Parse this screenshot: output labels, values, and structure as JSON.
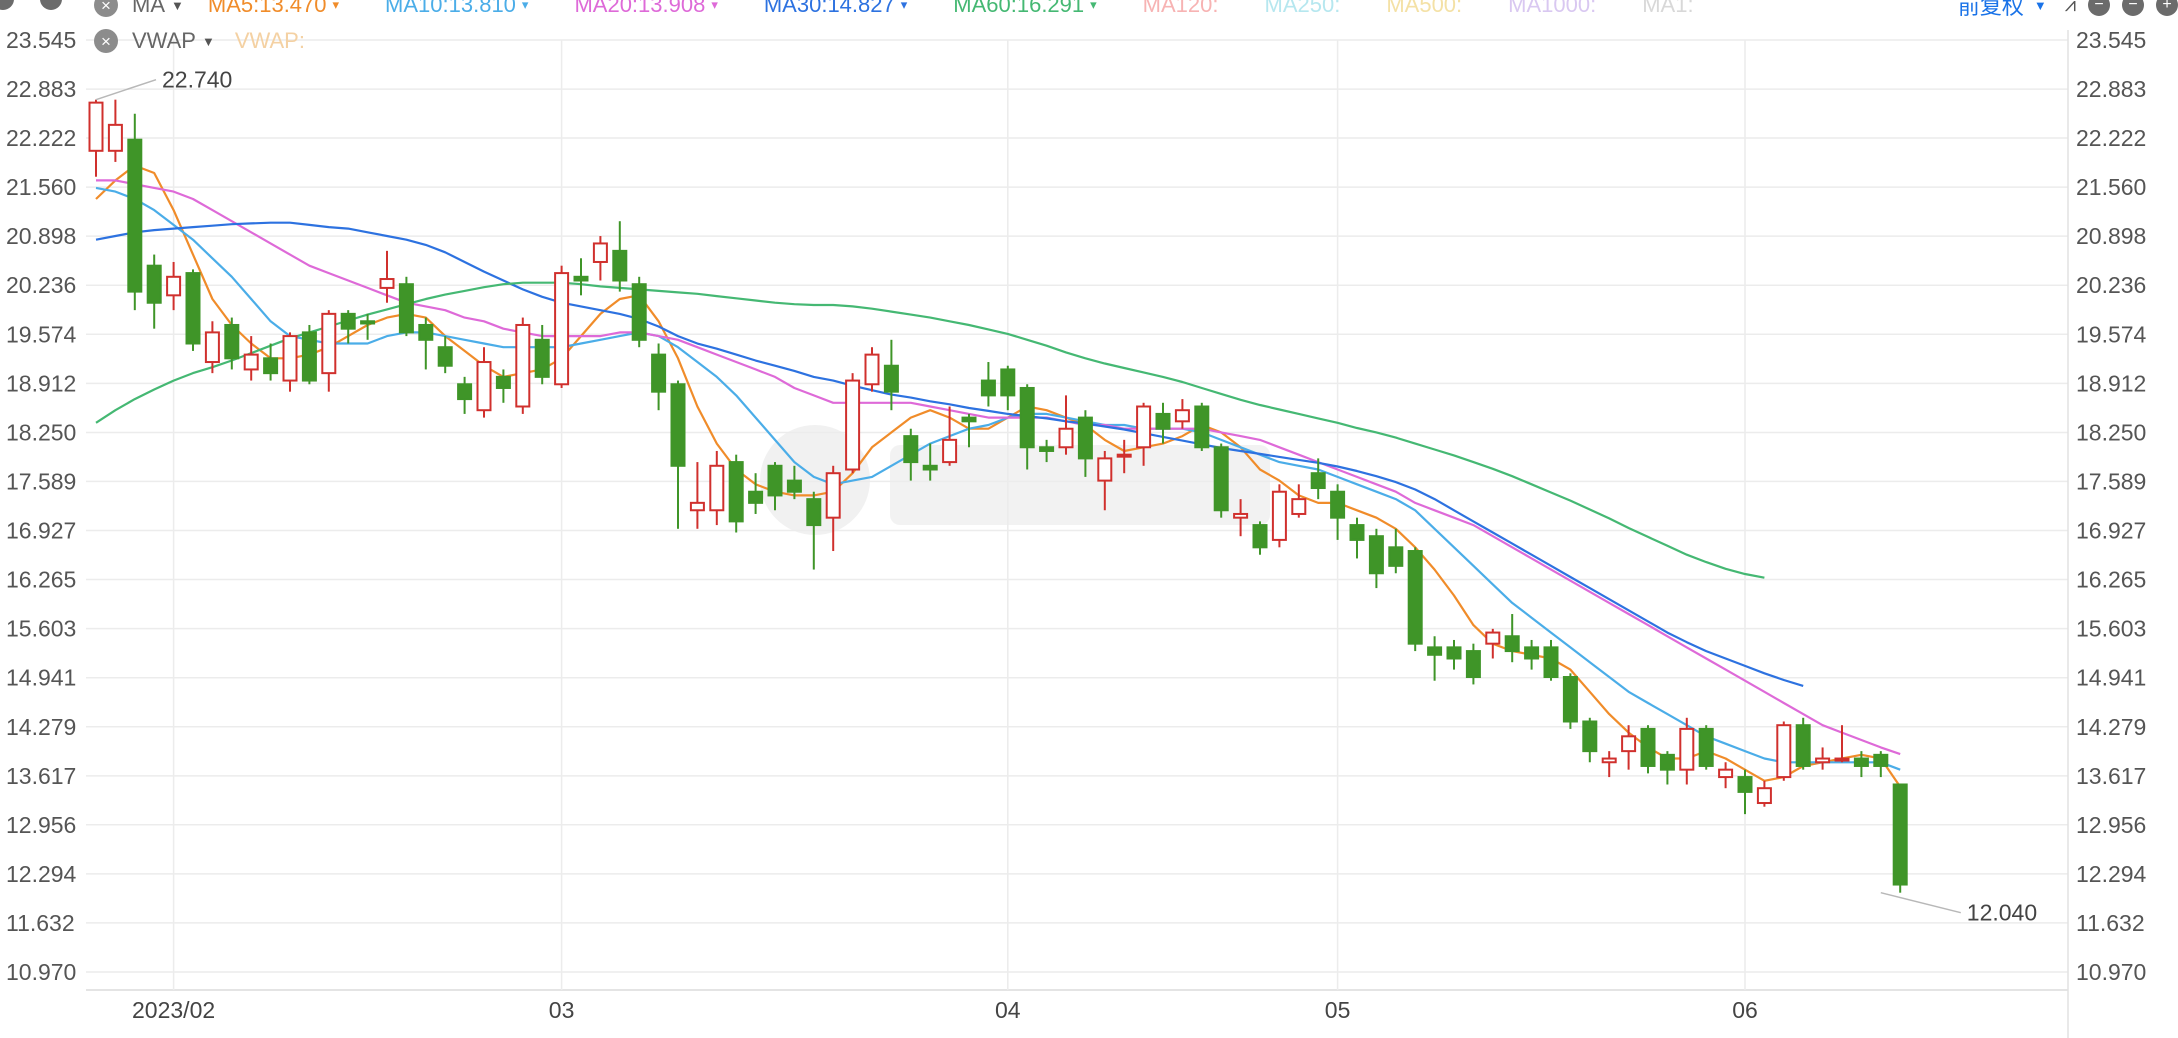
{
  "toolbar": {
    "adjust_label": "前复权",
    "vwap_label": "VWAP",
    "vwap_value_label": "VWAP:"
  },
  "legend": {
    "indicator_name": "MA",
    "items": [
      {
        "label": "MA5:13.470",
        "color": "#f08c2a",
        "active": true
      },
      {
        "label": "MA10:13.810",
        "color": "#4bade8",
        "active": true
      },
      {
        "label": "MA20:13.908",
        "color": "#de6ad8",
        "active": true
      },
      {
        "label": "MA30:14.827",
        "color": "#2d72e0",
        "active": true
      },
      {
        "label": "MA60:16.291",
        "color": "#45b873",
        "active": true
      },
      {
        "label": "MA120:",
        "color": "#f7b3b3",
        "active": false
      },
      {
        "label": "MA250:",
        "color": "#b6e7ef",
        "active": false
      },
      {
        "label": "MA500:",
        "color": "#f4e1a6",
        "active": false
      },
      {
        "label": "MA1000:",
        "color": "#d9c8f1",
        "active": false
      },
      {
        "label": "MA1:",
        "color": "#d8d8d8",
        "active": false
      }
    ]
  },
  "chart_data": {
    "type": "candlestick",
    "y_ticks": [
      "23.545",
      "22.883",
      "22.222",
      "21.560",
      "20.898",
      "20.236",
      "19.574",
      "18.912",
      "18.250",
      "17.589",
      "16.927",
      "16.265",
      "15.603",
      "14.941",
      "14.279",
      "13.617",
      "12.956",
      "12.294",
      "11.632",
      "10.970"
    ],
    "ylim": [
      10.97,
      23.545
    ],
    "x_labels": [
      {
        "label": "2023/02",
        "index": 4
      },
      {
        "label": "03",
        "index": 24
      },
      {
        "label": "04",
        "index": 47
      },
      {
        "label": "05",
        "index": 64
      },
      {
        "label": "06",
        "index": 85
      }
    ],
    "annotations": {
      "high": {
        "label": "22.740",
        "value": 22.74,
        "index": 0
      },
      "low": {
        "label": "12.040",
        "value": 12.04,
        "index": 92
      }
    },
    "candles": [
      [
        22.05,
        22.7,
        22.74,
        21.7
      ],
      [
        22.05,
        22.4,
        22.74,
        21.9
      ],
      [
        22.2,
        20.15,
        22.55,
        19.9
      ],
      [
        20.5,
        20.0,
        20.65,
        19.65
      ],
      [
        20.1,
        20.35,
        20.55,
        19.9
      ],
      [
        20.4,
        19.45,
        20.45,
        19.35
      ],
      [
        19.2,
        19.6,
        19.75,
        19.05
      ],
      [
        19.7,
        19.25,
        19.8,
        19.1
      ],
      [
        19.1,
        19.3,
        19.55,
        18.95
      ],
      [
        19.25,
        19.05,
        19.45,
        18.95
      ],
      [
        18.95,
        19.55,
        19.6,
        18.8
      ],
      [
        19.6,
        18.95,
        19.7,
        18.9
      ],
      [
        19.05,
        19.85,
        19.9,
        18.8
      ],
      [
        19.85,
        19.65,
        19.9,
        19.45
      ],
      [
        19.75,
        19.72,
        19.85,
        19.5
      ],
      [
        20.2,
        20.32,
        20.7,
        20.0
      ],
      [
        20.25,
        19.6,
        20.35,
        19.55
      ],
      [
        19.7,
        19.5,
        19.8,
        19.1
      ],
      [
        19.4,
        19.15,
        19.55,
        19.05
      ],
      [
        18.9,
        18.7,
        19.0,
        18.5
      ],
      [
        18.55,
        19.2,
        19.4,
        18.45
      ],
      [
        19.0,
        18.85,
        19.1,
        18.65
      ],
      [
        18.6,
        19.7,
        19.8,
        18.5
      ],
      [
        19.5,
        19.0,
        19.7,
        18.9
      ],
      [
        18.9,
        20.4,
        20.5,
        18.85
      ],
      [
        20.35,
        20.3,
        20.6,
        20.1
      ],
      [
        20.55,
        20.8,
        20.9,
        20.3
      ],
      [
        20.7,
        20.3,
        21.1,
        20.15
      ],
      [
        20.25,
        19.5,
        20.35,
        19.4
      ],
      [
        19.3,
        18.8,
        19.45,
        18.55
      ],
      [
        18.9,
        17.8,
        18.95,
        16.95
      ],
      [
        17.2,
        17.3,
        17.85,
        16.95
      ],
      [
        17.2,
        17.8,
        18.0,
        17.0
      ],
      [
        17.85,
        17.05,
        17.95,
        16.9
      ],
      [
        17.45,
        17.3,
        17.7,
        17.15
      ],
      [
        17.8,
        17.4,
        17.85,
        17.2
      ],
      [
        17.6,
        17.45,
        17.8,
        17.35
      ],
      [
        17.35,
        17.0,
        17.45,
        16.4
      ],
      [
        17.1,
        17.7,
        17.8,
        16.65
      ],
      [
        17.75,
        18.95,
        19.05,
        17.7
      ],
      [
        18.9,
        19.3,
        19.4,
        18.8
      ],
      [
        19.15,
        18.8,
        19.5,
        18.55
      ],
      [
        18.2,
        17.85,
        18.3,
        17.6
      ],
      [
        17.8,
        17.75,
        18.1,
        17.6
      ],
      [
        17.85,
        18.15,
        18.6,
        17.8
      ],
      [
        18.45,
        18.4,
        18.5,
        18.05
      ],
      [
        18.95,
        18.75,
        19.2,
        18.6
      ],
      [
        19.1,
        18.75,
        19.15,
        18.55
      ],
      [
        18.85,
        18.05,
        18.9,
        17.75
      ],
      [
        18.05,
        18.0,
        18.15,
        17.85
      ],
      [
        18.05,
        18.3,
        18.75,
        17.95
      ],
      [
        18.45,
        17.9,
        18.55,
        17.65
      ],
      [
        17.6,
        17.9,
        18.0,
        17.2
      ],
      [
        17.95,
        17.95,
        18.15,
        17.7
      ],
      [
        18.05,
        18.6,
        18.65,
        17.8
      ],
      [
        18.5,
        18.3,
        18.65,
        18.1
      ],
      [
        18.4,
        18.55,
        18.7,
        18.3
      ],
      [
        18.6,
        18.05,
        18.65,
        18.0
      ],
      [
        18.05,
        17.2,
        18.1,
        17.1
      ],
      [
        17.1,
        17.15,
        17.35,
        16.85
      ],
      [
        17.0,
        16.7,
        17.05,
        16.6
      ],
      [
        16.8,
        17.45,
        17.55,
        16.7
      ],
      [
        17.15,
        17.35,
        17.55,
        17.1
      ],
      [
        17.7,
        17.5,
        17.9,
        17.35
      ],
      [
        17.45,
        17.1,
        17.55,
        16.8
      ],
      [
        17.0,
        16.8,
        17.1,
        16.55
      ],
      [
        16.85,
        16.35,
        16.95,
        16.15
      ],
      [
        16.7,
        16.45,
        16.95,
        16.35
      ],
      [
        16.65,
        15.4,
        16.7,
        15.3
      ],
      [
        15.35,
        15.25,
        15.5,
        14.9
      ],
      [
        15.35,
        15.2,
        15.45,
        15.05
      ],
      [
        15.3,
        14.95,
        15.4,
        14.85
      ],
      [
        15.4,
        15.55,
        15.6,
        15.2
      ],
      [
        15.5,
        15.3,
        15.8,
        15.15
      ],
      [
        15.35,
        15.2,
        15.45,
        15.05
      ],
      [
        15.35,
        14.95,
        15.45,
        14.9
      ],
      [
        14.95,
        14.35,
        15.0,
        14.25
      ],
      [
        14.35,
        13.95,
        14.4,
        13.8
      ],
      [
        13.8,
        13.85,
        13.95,
        13.6
      ],
      [
        13.95,
        14.15,
        14.3,
        13.7
      ],
      [
        14.25,
        13.75,
        14.3,
        13.65
      ],
      [
        13.9,
        13.7,
        13.95,
        13.5
      ],
      [
        13.7,
        14.25,
        14.4,
        13.5
      ],
      [
        14.25,
        13.75,
        14.3,
        13.7
      ],
      [
        13.6,
        13.7,
        13.8,
        13.45
      ],
      [
        13.6,
        13.4,
        13.7,
        13.1
      ],
      [
        13.25,
        13.45,
        13.55,
        13.2
      ],
      [
        13.6,
        14.3,
        14.35,
        13.55
      ],
      [
        14.3,
        13.75,
        14.4,
        13.7
      ],
      [
        13.8,
        13.85,
        14.0,
        13.7
      ],
      [
        13.85,
        13.85,
        14.3,
        13.8
      ],
      [
        13.85,
        13.75,
        13.95,
        13.6
      ],
      [
        13.9,
        13.75,
        13.95,
        13.6
      ],
      [
        13.5,
        12.15,
        13.5,
        12.04
      ]
    ],
    "series": [
      {
        "name": "MA5",
        "color": "#f08c2a",
        "start": 0,
        "values": [
          21.4,
          21.65,
          21.85,
          21.75,
          21.25,
          20.65,
          20.05,
          19.7,
          19.45,
          19.25,
          19.25,
          19.3,
          19.4,
          19.55,
          19.7,
          19.8,
          19.85,
          19.8,
          19.55,
          19.35,
          19.15,
          19.0,
          19.05,
          19.1,
          19.25,
          19.55,
          19.85,
          20.05,
          20.1,
          19.75,
          19.25,
          18.6,
          18.1,
          17.75,
          17.55,
          17.45,
          17.4,
          17.4,
          17.45,
          17.7,
          18.05,
          18.25,
          18.45,
          18.55,
          18.45,
          18.3,
          18.3,
          18.45,
          18.6,
          18.55,
          18.45,
          18.35,
          18.15,
          18.0,
          18.05,
          18.1,
          18.2,
          18.35,
          18.25,
          18.05,
          17.75,
          17.6,
          17.4,
          17.3,
          17.3,
          17.2,
          17.1,
          16.95,
          16.7,
          16.4,
          16.05,
          15.65,
          15.4,
          15.3,
          15.25,
          15.2,
          15.05,
          14.75,
          14.45,
          14.2,
          14.0,
          13.85,
          13.85,
          13.95,
          13.85,
          13.7,
          13.55,
          13.6,
          13.75,
          13.8,
          13.85,
          13.9,
          13.85,
          13.47
        ]
      },
      {
        "name": "MA10",
        "color": "#4bade8",
        "start": 0,
        "values": [
          21.55,
          21.5,
          21.4,
          21.25,
          21.05,
          20.85,
          20.6,
          20.35,
          20.05,
          19.75,
          19.55,
          19.5,
          19.45,
          19.45,
          19.45,
          19.55,
          19.6,
          19.6,
          19.55,
          19.5,
          19.45,
          19.4,
          19.4,
          19.4,
          19.4,
          19.45,
          19.5,
          19.55,
          19.6,
          19.55,
          19.4,
          19.2,
          19.0,
          18.75,
          18.45,
          18.15,
          17.85,
          17.65,
          17.55,
          17.6,
          17.65,
          17.8,
          17.95,
          18.1,
          18.2,
          18.3,
          18.35,
          18.45,
          18.5,
          18.5,
          18.45,
          18.4,
          18.35,
          18.35,
          18.3,
          18.3,
          18.3,
          18.25,
          18.15,
          18.05,
          17.95,
          17.85,
          17.8,
          17.75,
          17.65,
          17.55,
          17.45,
          17.35,
          17.2,
          16.95,
          16.7,
          16.45,
          16.2,
          15.95,
          15.75,
          15.55,
          15.35,
          15.15,
          14.95,
          14.75,
          14.6,
          14.45,
          14.3,
          14.15,
          14.05,
          13.95,
          13.85,
          13.8,
          13.8,
          13.8,
          13.8,
          13.8,
          13.8,
          13.7
        ]
      },
      {
        "name": "MA20",
        "color": "#de6ad8",
        "start": 0,
        "values": [
          21.65,
          21.65,
          21.6,
          21.55,
          21.5,
          21.4,
          21.25,
          21.1,
          20.95,
          20.8,
          20.65,
          20.5,
          20.4,
          20.3,
          20.2,
          20.1,
          20.0,
          19.95,
          19.9,
          19.8,
          19.75,
          19.65,
          19.6,
          19.55,
          19.55,
          19.55,
          19.55,
          19.6,
          19.6,
          19.55,
          19.5,
          19.4,
          19.3,
          19.2,
          19.1,
          19.0,
          18.85,
          18.75,
          18.65,
          18.65,
          18.65,
          18.65,
          18.65,
          18.6,
          18.55,
          18.5,
          18.45,
          18.45,
          18.45,
          18.45,
          18.4,
          18.35,
          18.35,
          18.3,
          18.3,
          18.3,
          18.3,
          18.3,
          18.25,
          18.2,
          18.15,
          18.05,
          17.95,
          17.85,
          17.75,
          17.65,
          17.55,
          17.45,
          17.3,
          17.2,
          17.1,
          17.0,
          16.85,
          16.7,
          16.55,
          16.4,
          16.25,
          16.1,
          15.95,
          15.8,
          15.65,
          15.5,
          15.35,
          15.2,
          15.05,
          14.9,
          14.75,
          14.6,
          14.45,
          14.3,
          14.2,
          14.1,
          14.0,
          13.91
        ]
      },
      {
        "name": "MA30",
        "color": "#2d72e0",
        "start": 0,
        "values": [
          20.85,
          20.9,
          20.95,
          20.98,
          21.0,
          21.02,
          21.04,
          21.06,
          21.07,
          21.08,
          21.08,
          21.05,
          21.02,
          21.0,
          20.95,
          20.9,
          20.85,
          20.78,
          20.68,
          20.55,
          20.42,
          20.3,
          20.18,
          20.08,
          20.0,
          19.95,
          19.9,
          19.85,
          19.78,
          19.68,
          19.55,
          19.45,
          19.38,
          19.3,
          19.22,
          19.15,
          19.08,
          19.0,
          18.95,
          18.88,
          18.82,
          18.76,
          18.72,
          18.67,
          18.63,
          18.58,
          18.54,
          18.5,
          18.47,
          18.44,
          18.4,
          18.37,
          18.33,
          18.29,
          18.24,
          18.19,
          18.14,
          18.09,
          18.04,
          18.0,
          17.96,
          17.92,
          17.88,
          17.84,
          17.79,
          17.73,
          17.66,
          17.58,
          17.48,
          17.35,
          17.2,
          17.05,
          16.9,
          16.75,
          16.6,
          16.45,
          16.3,
          16.15,
          16.0,
          15.85,
          15.7,
          15.55,
          15.42,
          15.3,
          15.2,
          15.1,
          15.0,
          14.91,
          14.83
        ]
      },
      {
        "name": "MA60",
        "color": "#45b873",
        "start": 0,
        "values": [
          18.38,
          18.55,
          18.7,
          18.83,
          18.95,
          19.05,
          19.13,
          19.22,
          19.32,
          19.42,
          19.52,
          19.6,
          19.68,
          19.76,
          19.84,
          19.91,
          19.98,
          20.05,
          20.11,
          20.16,
          20.21,
          20.25,
          20.27,
          20.27,
          20.27,
          20.25,
          20.22,
          20.2,
          20.18,
          20.16,
          20.14,
          20.12,
          20.09,
          20.06,
          20.03,
          20.0,
          19.98,
          19.97,
          19.97,
          19.95,
          19.92,
          19.88,
          19.84,
          19.8,
          19.75,
          19.7,
          19.64,
          19.58,
          19.5,
          19.42,
          19.33,
          19.25,
          19.18,
          19.12,
          19.06,
          19.0,
          18.93,
          18.85,
          18.77,
          18.69,
          18.62,
          18.56,
          18.5,
          18.44,
          18.38,
          18.31,
          18.25,
          18.18,
          18.1,
          18.02,
          17.94,
          17.85,
          17.76,
          17.66,
          17.55,
          17.44,
          17.33,
          17.21,
          17.09,
          16.96,
          16.84,
          16.72,
          16.6,
          16.5,
          16.41,
          16.34,
          16.29
        ]
      }
    ]
  },
  "colors": {
    "up": "#d0302d",
    "down": "#3f9528",
    "grid": "#ececec",
    "axis_text": "#555555",
    "annotation_line": "#b8b8b8"
  }
}
